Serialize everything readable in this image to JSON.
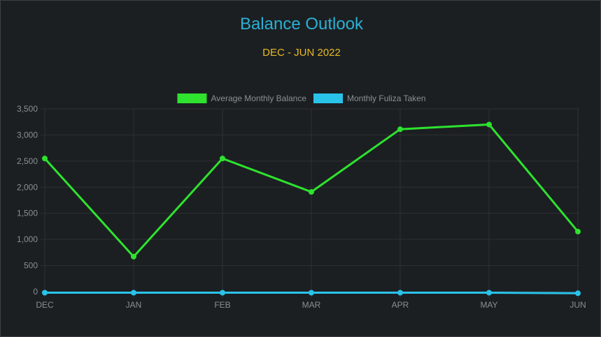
{
  "chart_data": {
    "type": "line",
    "title": "Balance Outlook",
    "subtitle": "DEC - JUN 2022",
    "categories": [
      "DEC",
      "JAN",
      "FEB",
      "MAR",
      "APR",
      "MAY",
      "JUN"
    ],
    "series": [
      {
        "name": "Average Monthly Balance",
        "color": "#2ee22e",
        "values": [
          2550,
          670,
          2550,
          1910,
          3110,
          3200,
          1150
        ]
      },
      {
        "name": "Monthly Fuliza Taken",
        "color": "#29c3ea",
        "values": [
          -20,
          -20,
          -20,
          -20,
          -20,
          -20,
          -30
        ]
      }
    ],
    "y_ticks": [
      "3,500",
      "3,000",
      "2,500",
      "2,000",
      "1,500",
      "1,000",
      "500",
      "0"
    ],
    "ylim": [
      -50,
      3500
    ],
    "grid": true,
    "legend_position": "top-center"
  },
  "colors": {
    "title": "#2ab0d4",
    "subtitle": "#e8b923",
    "background": "#1b1f22",
    "grid": "#2c3034",
    "axis_text": "#8a8f94"
  }
}
